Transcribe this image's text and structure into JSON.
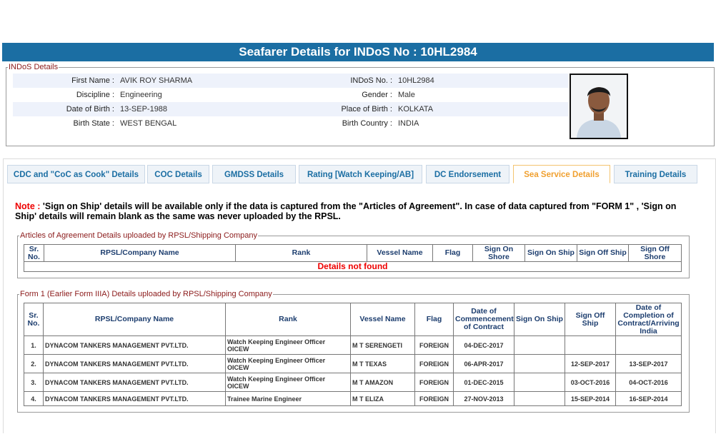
{
  "header": {
    "title": "Seafarer Details for INDoS No : 10HL2984"
  },
  "indos_details": {
    "legend": "INDoS Details",
    "rows": [
      [
        {
          "label": "First Name :",
          "value": "AVIK ROY SHARMA"
        },
        {
          "label": "INDoS No. :",
          "value": "10HL2984"
        }
      ],
      [
        {
          "label": "Discipline :",
          "value": "Engineering"
        },
        {
          "label": "Gender :",
          "value": "Male"
        }
      ],
      [
        {
          "label": "Date of Birth :",
          "value": "13-SEP-1988"
        },
        {
          "label": "Place of Birth :",
          "value": "KOLKATA"
        }
      ],
      [
        {
          "label": "Birth State :",
          "value": "WEST BENGAL"
        },
        {
          "label": "Birth Country :",
          "value": "INDIA"
        }
      ]
    ]
  },
  "tabs": {
    "items": [
      "CDC and \"CoC as Cook\" Details",
      "COC Details",
      "GMDSS Details",
      "Rating [Watch Keeping/AB]",
      "DC Endorsement",
      "Sea Service Details",
      "Training Details"
    ],
    "active": 5
  },
  "note": {
    "label": "Note :",
    "text": "'Sign on Ship' details will be available only if the data is captured from the \"Articles of Agreement\". In case of data captured from \"FORM 1\" , 'Sign on Ship' details will remain blank as the same was never uploaded by the RPSL."
  },
  "articles": {
    "legend": "Articles of Agreement Details uploaded by RPSL/Shipping Company",
    "headers": [
      "Sr. No.",
      "RPSL/Company Name",
      "Rank",
      "Vessel Name",
      "Flag",
      "Sign On Shore",
      "Sign On Ship",
      "Sign Off Ship",
      "Sign Off Shore"
    ],
    "empty_message": "Details not found"
  },
  "form1": {
    "legend": "Form 1 (Earlier Form IIIA) Details uploaded by RPSL/Shipping Company",
    "headers": [
      "Sr. No.",
      "RPSL/Company Name",
      "Rank",
      "Vessel Name",
      "Flag",
      "Date of Commencement of Contract",
      "Sign On Ship",
      "Sign Off Ship",
      "Date of Completion of Contract/Arriving India"
    ],
    "rows": [
      [
        "1.",
        "DYNACOM TANKERS MANAGEMENT PVT.LTD.",
        "Watch Keeping Engineer Officer OICEW",
        "M T SERENGETI",
        "FOREIGN",
        "04-DEC-2017",
        null,
        null,
        null
      ],
      [
        "2.",
        "DYNACOM TANKERS MANAGEMENT PVT.LTD.",
        "Watch Keeping Engineer Officer OICEW",
        "M T TEXAS",
        "FOREIGN",
        "06-APR-2017",
        null,
        "12-SEP-2017",
        "13-SEP-2017"
      ],
      [
        "3.",
        "DYNACOM TANKERS MANAGEMENT PVT.LTD.",
        "Watch Keeping Engineer Officer OICEW",
        "M T AMAZON",
        "FOREIGN",
        "01-DEC-2015",
        null,
        "03-OCT-2016",
        "04-OCT-2016"
      ],
      [
        "4.",
        "DYNACOM TANKERS MANAGEMENT PVT.LTD.",
        "Trainee Marine Engineer",
        "M T ELIZA",
        "FOREIGN",
        "27-NOV-2013",
        null,
        "15-SEP-2014",
        "16-SEP-2014"
      ]
    ]
  }
}
